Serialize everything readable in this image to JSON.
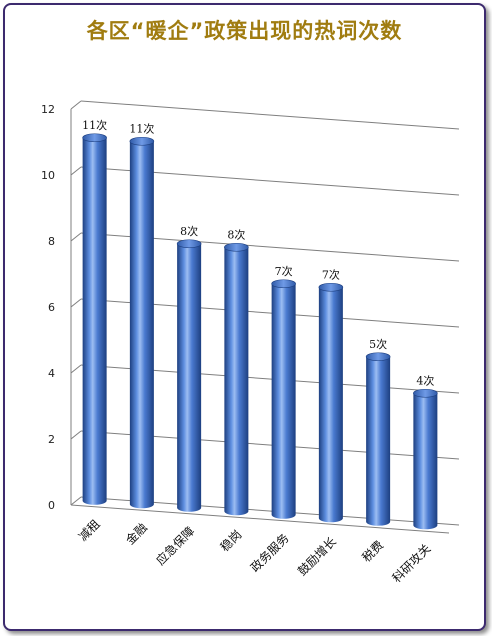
{
  "title": "各区“暖企”政策出现的热词次数",
  "chart_data": {
    "type": "bar",
    "style": "3d-cylinder",
    "title": "各区“暖企”政策出现的热词次数",
    "categories": [
      "减租",
      "金融",
      "应急保障",
      "稳岗",
      "政务服务",
      "鼓励增长",
      "税费",
      "科研攻关"
    ],
    "values": [
      11,
      11,
      8,
      8,
      7,
      7,
      5,
      4
    ],
    "data_labels": [
      "11次",
      "11次",
      "8次",
      "8次",
      "7次",
      "7次",
      "5次",
      "4次"
    ],
    "y_ticks": [
      "0",
      "2",
      "4",
      "6",
      "8",
      "10",
      "12"
    ],
    "ylim": [
      0,
      12
    ],
    "grid": true,
    "legend": "none",
    "colors": {
      "bar": "#3a6bc4",
      "bar_light": "#7aa5ea",
      "bar_dark": "#1d3f80",
      "grid": "#7f7f7f",
      "title": "#a07c10",
      "frame": "#3c2a6e"
    }
  }
}
